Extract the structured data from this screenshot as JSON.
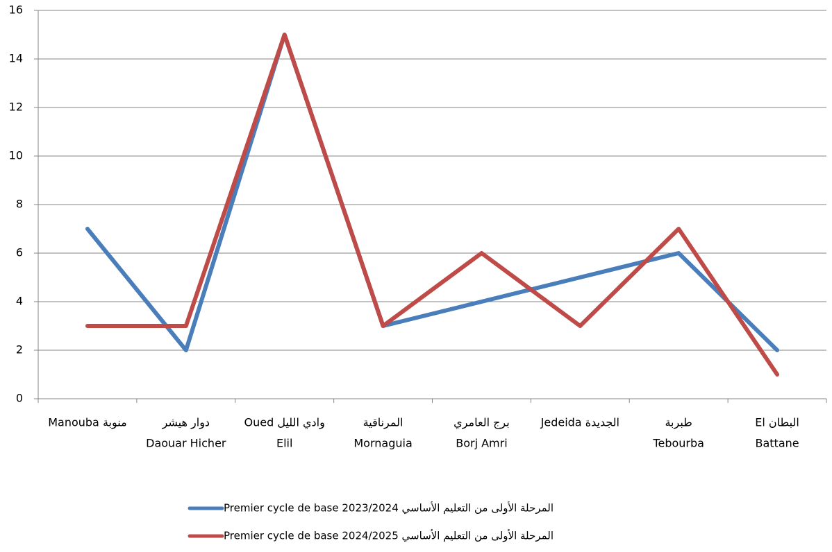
{
  "chart_data": {
    "type": "line",
    "categories": [
      [
        "Manouba  منوبة"
      ],
      [
        "دوار هيشر",
        "Daouar Hicher"
      ],
      [
        "Oued  وادي الليل",
        "Elil"
      ],
      [
        "المرناقية",
        "Mornaguia"
      ],
      [
        "برج العامري",
        "Borj Amri"
      ],
      [
        "Jedeida  الجديدة"
      ],
      [
        "طبربة",
        "Tebourba"
      ],
      [
        "El  البطان",
        "Battane"
      ]
    ],
    "series": [
      {
        "name": "Premier cycle de base 2023/2024 المرحلة الأولى من التعليم الأساسي",
        "color": "#4a7ebb",
        "values": [
          7,
          2,
          15,
          3,
          4,
          5,
          6,
          2
        ]
      },
      {
        "name": "Premier cycle de base 2024/2025 المرحلة الأولى من التعليم الأساسي",
        "color": "#be4b48",
        "values": [
          3,
          3,
          15,
          3,
          6,
          3,
          7,
          1
        ]
      }
    ],
    "ylim": [
      0,
      16
    ],
    "yticks": [
      0,
      2,
      4,
      6,
      8,
      10,
      12,
      14,
      16
    ],
    "grid": true,
    "legend": "bottom"
  }
}
